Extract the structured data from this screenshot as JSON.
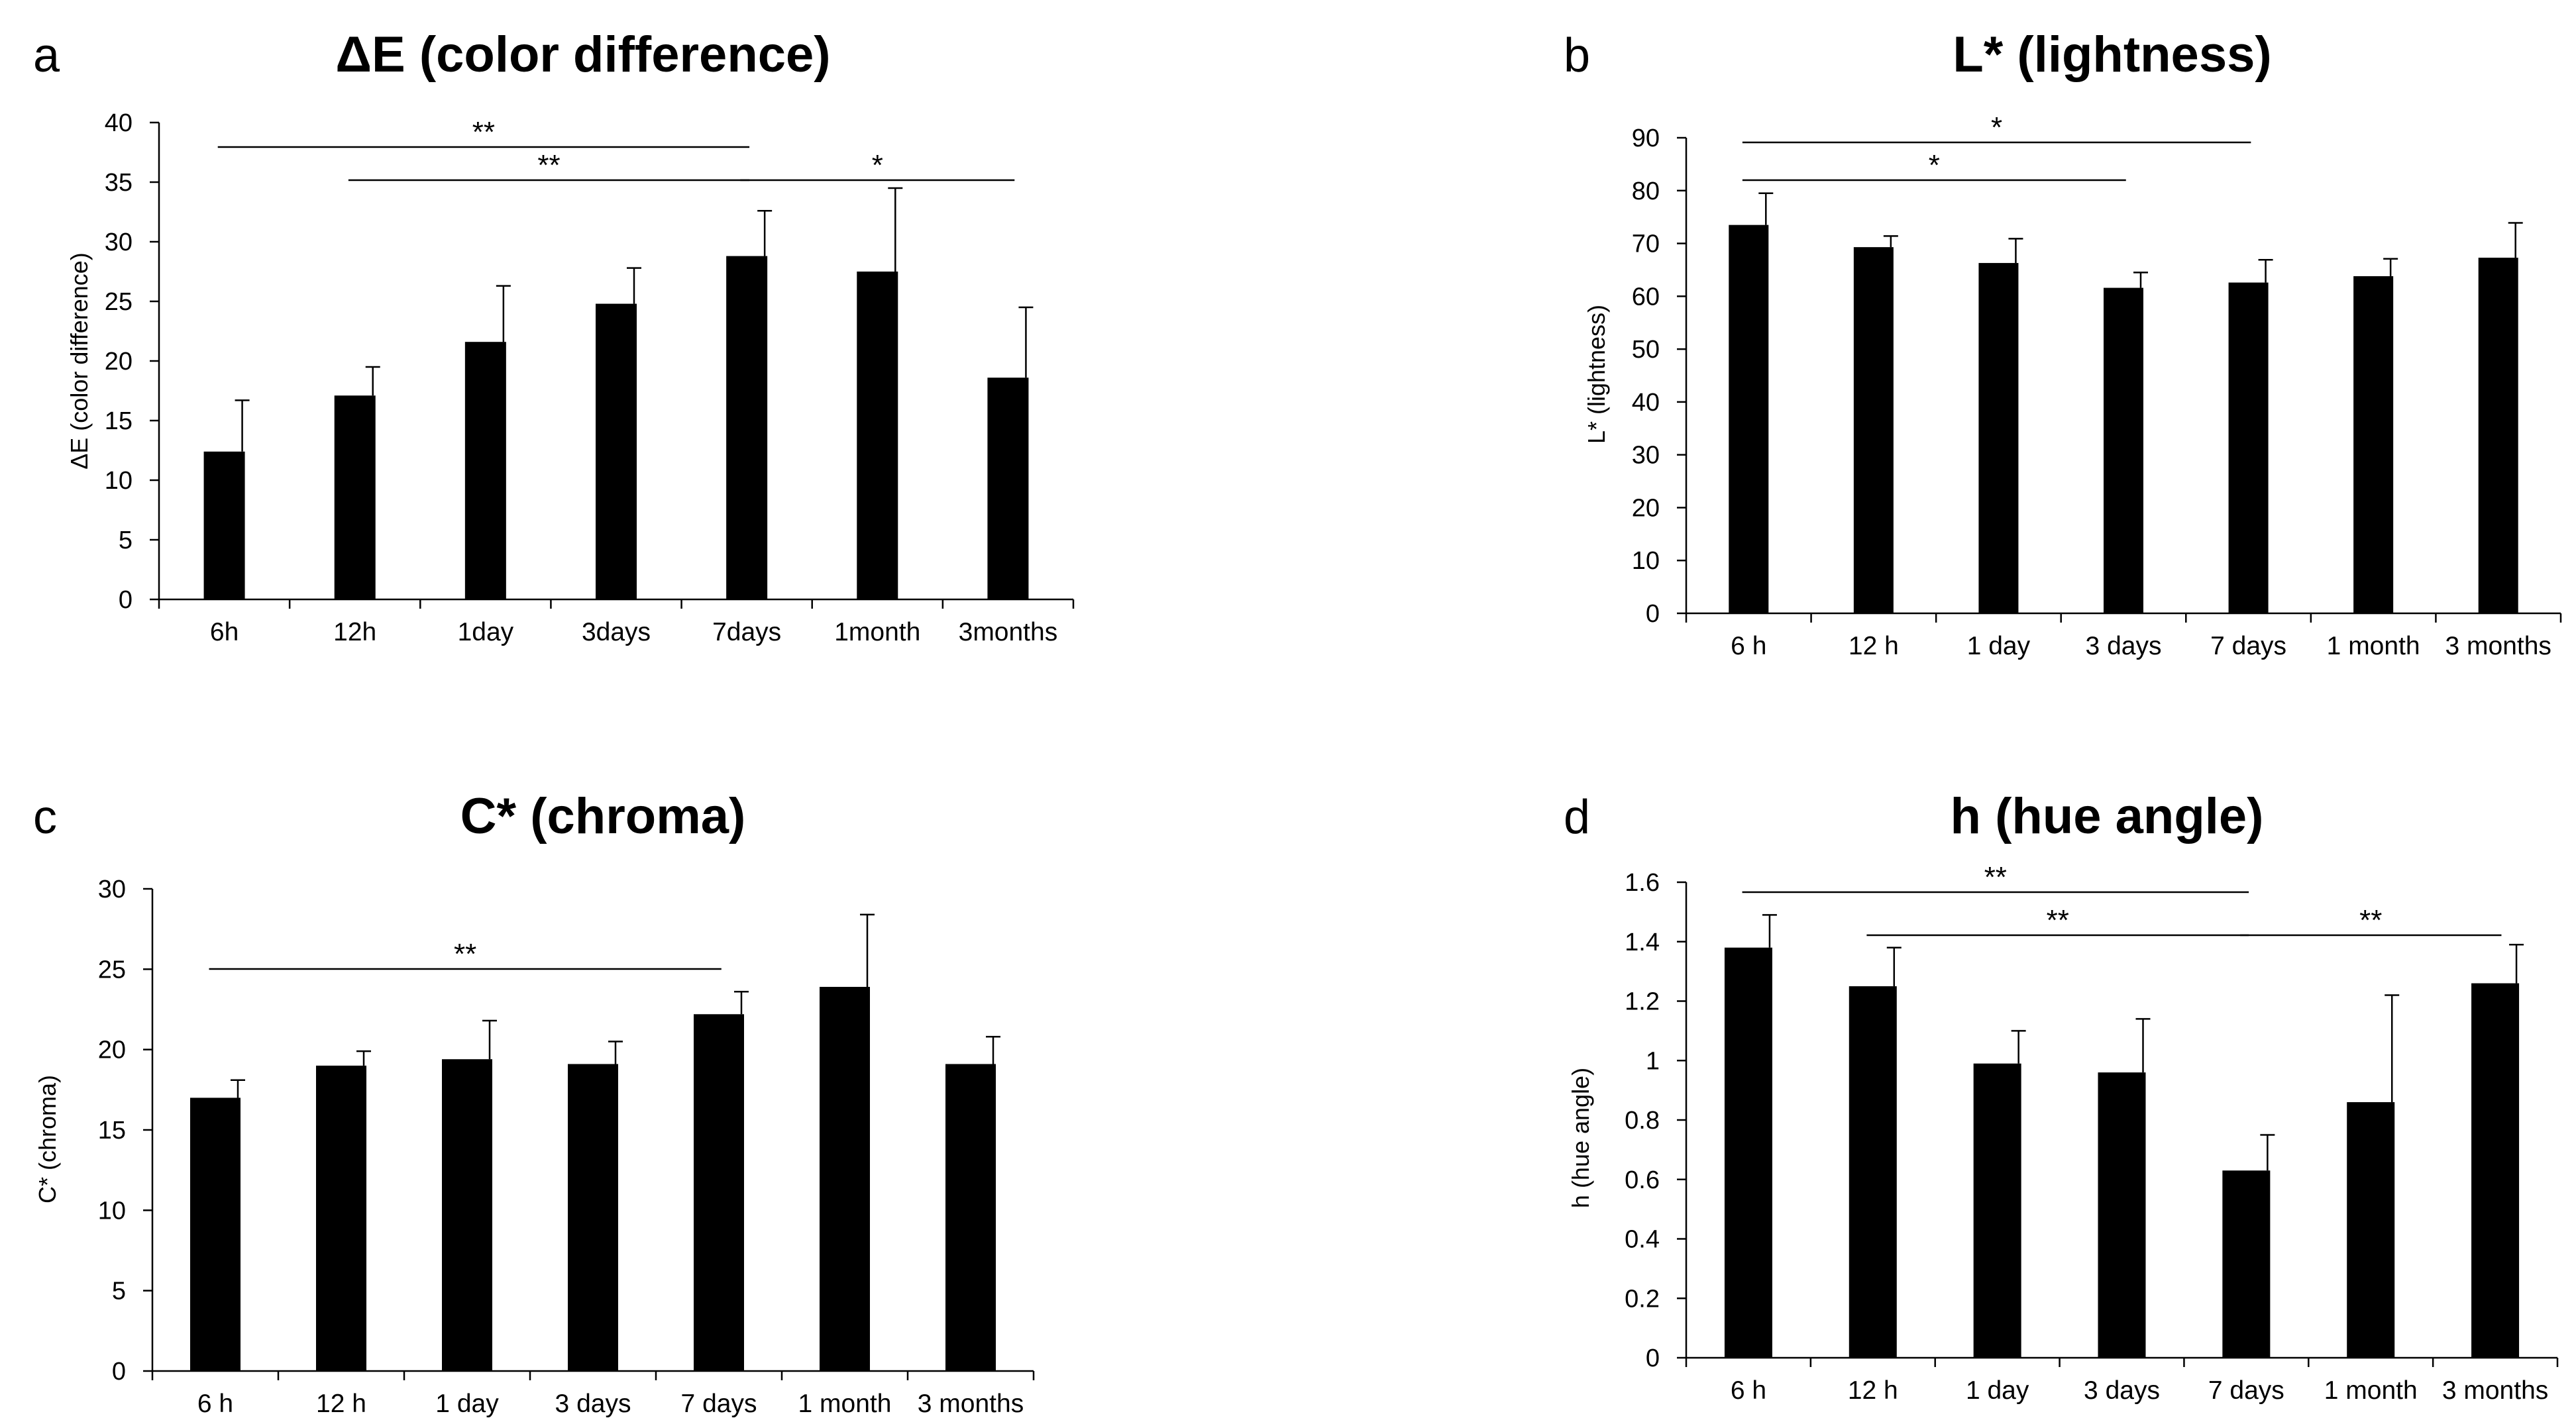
{
  "chart_data": [
    {
      "panel": "a",
      "type": "bar",
      "title": "ΔE (color difference)",
      "ylabel": "ΔE (color difference)",
      "xlabel": "",
      "categories": [
        "6h",
        "12h",
        "1day",
        "3days",
        "7days",
        "1month",
        "3months"
      ],
      "values": [
        12.4,
        17.1,
        21.6,
        24.8,
        28.8,
        27.5,
        18.6
      ],
      "errors": [
        4.3,
        2.4,
        4.7,
        3.0,
        3.8,
        7.0,
        5.9
      ],
      "ylim": [
        0,
        40
      ],
      "yticks": [
        "0",
        "5",
        "10",
        "15",
        "20",
        "25",
        "30",
        "35",
        "40"
      ],
      "bar_color": "#000000",
      "significance": [
        {
          "from": 0,
          "to": 4,
          "label": "**"
        },
        {
          "from": 1,
          "to": 4,
          "label": "**"
        },
        {
          "from": 4,
          "to": 6,
          "label": "*"
        }
      ]
    },
    {
      "panel": "b",
      "type": "bar",
      "title": "L* (lightness)",
      "ylabel": "L* (lightness)",
      "xlabel": "",
      "categories": [
        "6 h",
        "12 h",
        "1 day",
        "3 days",
        "7 days",
        "1 month",
        "3 months"
      ],
      "values": [
        73.5,
        69.3,
        66.3,
        61.6,
        62.6,
        63.8,
        67.3
      ],
      "errors": [
        6.0,
        2.1,
        4.6,
        2.9,
        4.3,
        3.3,
        6.6
      ],
      "ylim": [
        0,
        90
      ],
      "yticks": [
        "0",
        "10",
        "20",
        "30",
        "40",
        "50",
        "60",
        "70",
        "80",
        "90"
      ],
      "bar_color": "#000000",
      "significance": [
        {
          "from": 0,
          "to": 4,
          "label": "*"
        },
        {
          "from": 0,
          "to": 3,
          "label": "*"
        }
      ]
    },
    {
      "panel": "c",
      "type": "bar",
      "title": "C* (chroma)",
      "ylabel": "C* (chroma)",
      "xlabel": "",
      "categories": [
        "6 h",
        "12 h",
        "1 day",
        "3 days",
        "7 days",
        "1 month",
        "3 months"
      ],
      "values": [
        17.0,
        19.0,
        19.4,
        19.1,
        22.2,
        23.9,
        19.1
      ],
      "errors": [
        1.1,
        0.9,
        2.4,
        1.4,
        1.4,
        4.5,
        1.7
      ],
      "ylim": [
        0,
        30
      ],
      "yticks": [
        "0",
        "5",
        "10",
        "15",
        "20",
        "25",
        "30"
      ],
      "bar_color": "#000000",
      "significance": [
        {
          "from": 0,
          "to": 4,
          "label": "**"
        }
      ]
    },
    {
      "panel": "d",
      "type": "bar",
      "title": "h (hue angle)",
      "ylabel": "h (hue  angle)",
      "xlabel": "",
      "categories": [
        "6 h",
        "12 h",
        "1 day",
        "3 days",
        "7 days",
        "1 month",
        "3 months"
      ],
      "values": [
        1.38,
        1.25,
        0.99,
        0.96,
        0.63,
        0.86,
        1.26
      ],
      "errors": [
        0.11,
        0.13,
        0.11,
        0.18,
        0.12,
        0.36,
        0.13
      ],
      "ylim": [
        0,
        1.6
      ],
      "yticks": [
        "0",
        "0.2",
        "0.4",
        "0.6",
        "0.8",
        "1",
        "1.2",
        "1.4",
        "1.6"
      ],
      "bar_color": "#000000",
      "significance": [
        {
          "from": 0,
          "to": 4,
          "label": "**"
        },
        {
          "from": 1,
          "to": 4,
          "label": "**"
        },
        {
          "from": 4,
          "to": 6,
          "label": "**"
        }
      ]
    }
  ]
}
